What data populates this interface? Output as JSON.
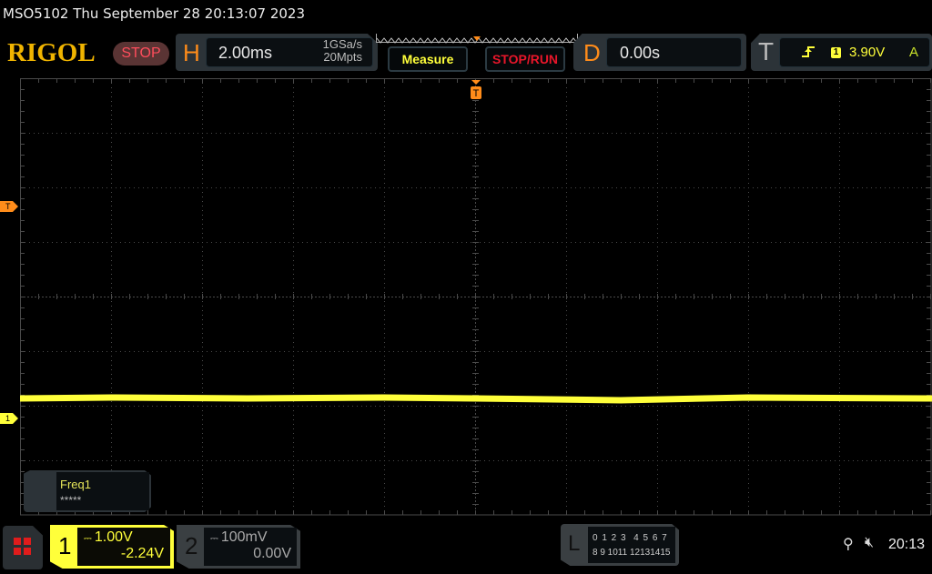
{
  "header": {
    "title": "MSO5102  Thu September 28 20:13:07 2023"
  },
  "logo": "RIGOL",
  "run_state": "STOP",
  "horizontal": {
    "label": "H",
    "timebase": "2.00ms",
    "sample_rate": "1GSa/s",
    "memory_depth": "20Mpts"
  },
  "buttons": {
    "measure": "Measure",
    "stop_run": "STOP/RUN"
  },
  "delay": {
    "label": "D",
    "value": "0.00s"
  },
  "trigger": {
    "label": "T",
    "slope_icon": "rising-edge-icon",
    "source": "1",
    "level": "3.90V",
    "mode": "A"
  },
  "markers": {
    "trigger_pos": "T",
    "trigger_level": "T",
    "ch1": "1"
  },
  "measurement": {
    "name": "Freq1",
    "value": "*****"
  },
  "channels": [
    {
      "number": "1",
      "coupling_icon": "dc-coupling-icon",
      "scale": "1.00V",
      "offset": "-2.24V",
      "color": "#ffff3a",
      "active": true
    },
    {
      "number": "2",
      "coupling_icon": "dc-coupling-icon",
      "scale": "100mV",
      "offset": "0.00V",
      "color": "#aaaaaa",
      "active": false
    }
  ],
  "logic": {
    "label": "L",
    "row1": "0 1 2 3  4 5 6 7",
    "row2": "8 9 1011 12131415"
  },
  "status": {
    "usb_icon": "usb-icon",
    "sound_icon": "mute-icon",
    "time": "20:13"
  },
  "colors": {
    "trace": "#ffff3a",
    "trigger": "#ff8c1a",
    "grid": "#4a4a4a"
  }
}
